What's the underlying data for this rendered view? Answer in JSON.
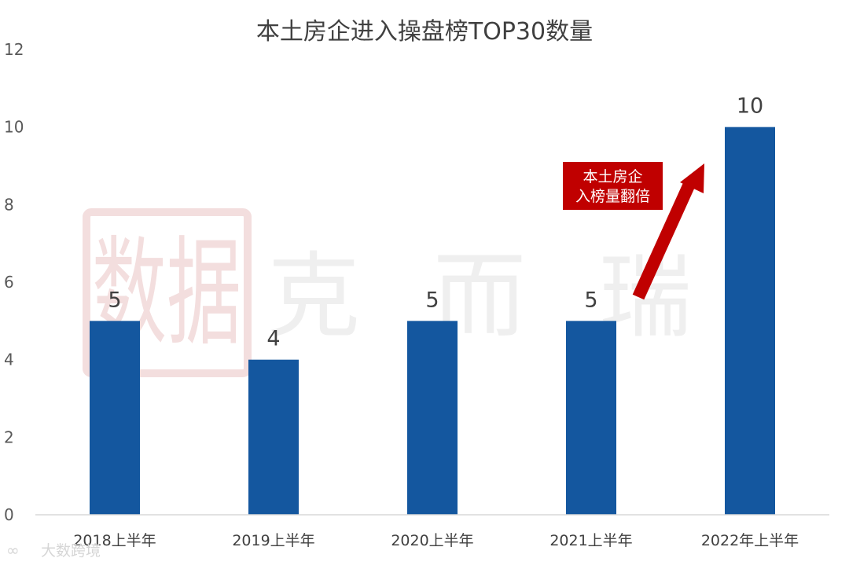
{
  "chart_data": {
    "type": "bar",
    "title": "本土房企进入操盘榜TOP30数量",
    "categories": [
      "2018上半年",
      "2019上半年",
      "2020上半年",
      "2021上半年",
      "2022年上半年"
    ],
    "values": [
      5,
      4,
      5,
      5,
      10
    ],
    "ylim": [
      0,
      12
    ],
    "yticks": [
      0,
      2,
      4,
      6,
      8,
      10,
      12
    ],
    "grid": false,
    "annotation": {
      "lines": [
        "本土房企",
        "入榜量翻倍"
      ]
    },
    "colors": {
      "bar": "#14579f",
      "callout": "#c00000",
      "arrow": "#c00000"
    }
  },
  "watermark": {
    "seal": "数据",
    "brand": "克而瑞",
    "corner": "大数跨境"
  }
}
